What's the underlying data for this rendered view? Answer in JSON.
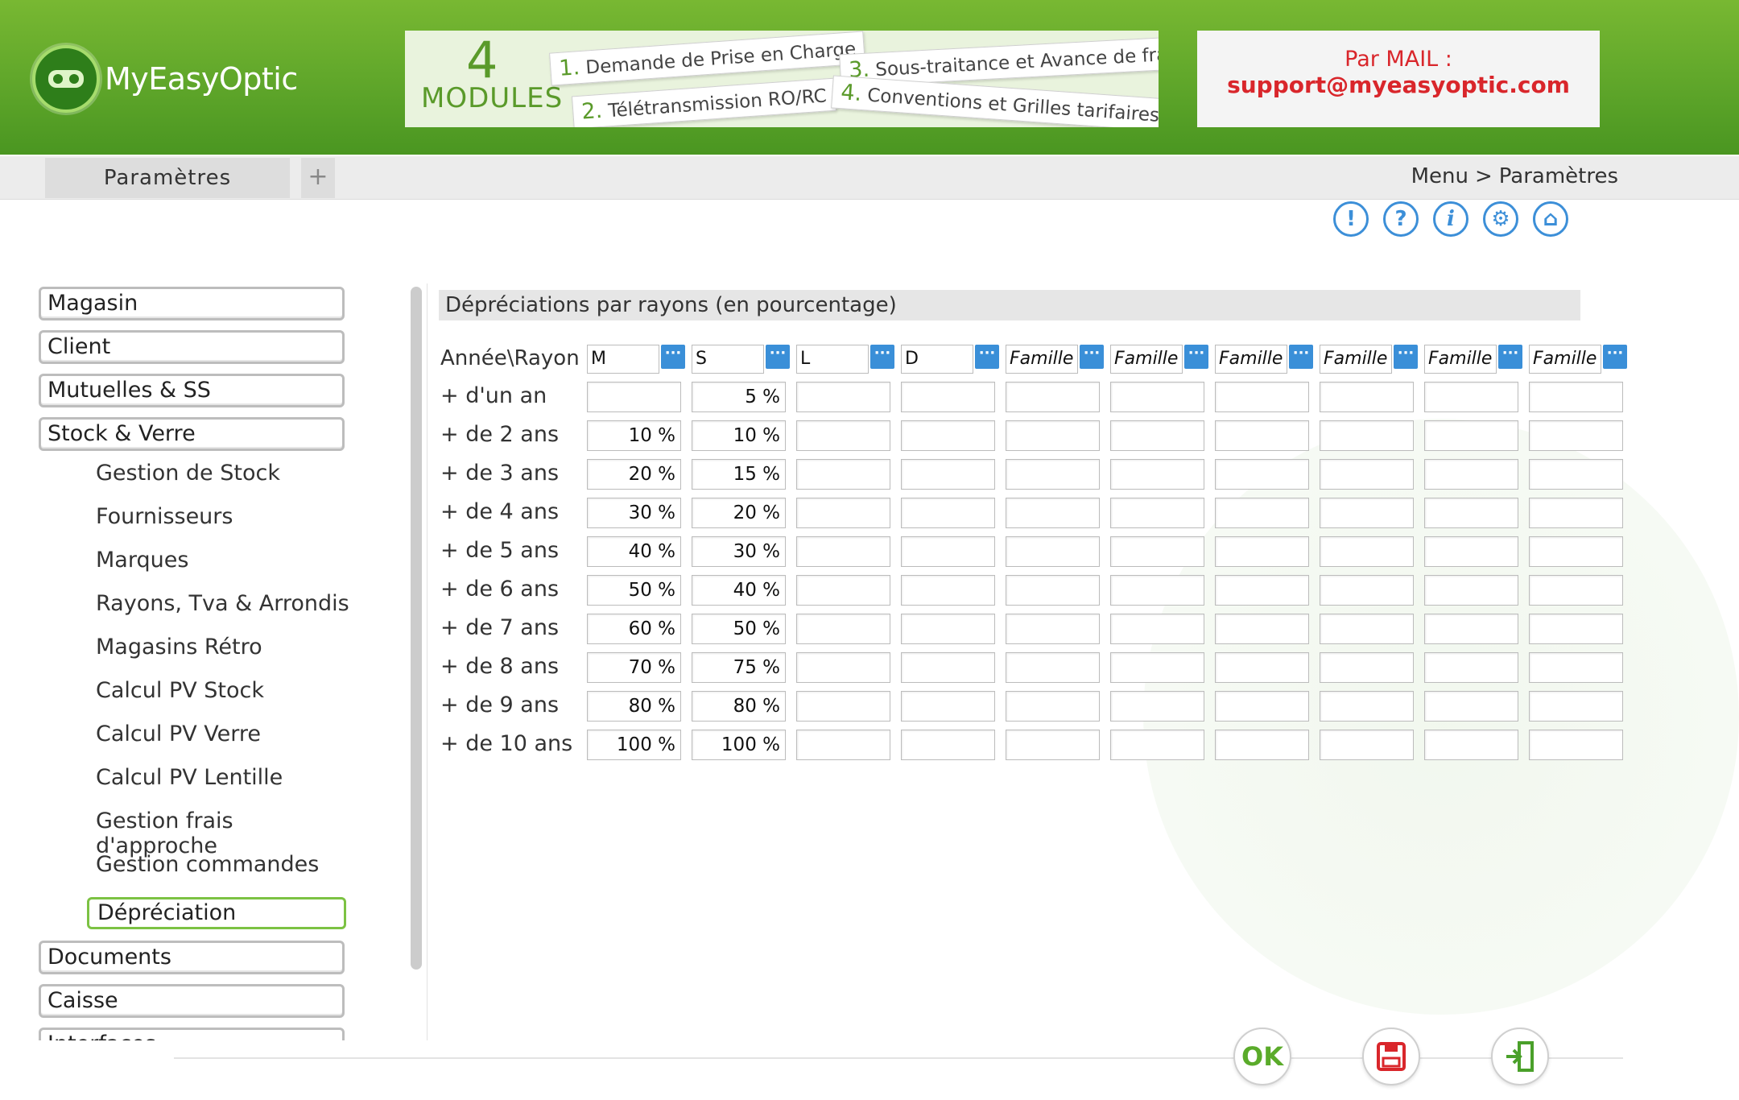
{
  "header": {
    "logo_text": "MyEasyOptic",
    "modules": {
      "number": "4",
      "word": "MODULES",
      "items": [
        {
          "n": "1.",
          "label": "Demande de Prise en Charge"
        },
        {
          "n": "2.",
          "label": "Télétransmission RO/RC"
        },
        {
          "n": "3.",
          "label": "Sous-traitance et Avance de frais"
        },
        {
          "n": "4.",
          "label": "Conventions et Grilles tarifaires"
        }
      ]
    },
    "mail": {
      "label": "Par MAIL :",
      "address": "support@myeasyoptic.com"
    }
  },
  "tabbar": {
    "tab_label": "Paramètres",
    "add_label": "+",
    "breadcrumb": {
      "root": "Menu",
      "sep": ">",
      "current": "Paramètres"
    }
  },
  "toolbar": {
    "icons": [
      {
        "name": "alert-icon",
        "glyph": "!"
      },
      {
        "name": "help-icon",
        "glyph": "?"
      },
      {
        "name": "info-icon",
        "glyph": "i"
      },
      {
        "name": "tools-icon",
        "glyph": "⚙"
      },
      {
        "name": "home-icon",
        "glyph": "⌂"
      }
    ]
  },
  "sidebar": {
    "magasin": "Magasin",
    "client": "Client",
    "mutuelles": "Mutuelles & SS",
    "stock": "Stock & Verre",
    "sub": [
      "Gestion de Stock",
      "Fournisseurs",
      "Marques",
      "Rayons, Tva & Arrondis",
      "Magasins Rétro",
      "Calcul PV Stock",
      "Calcul PV Verre",
      "Calcul PV Lentille",
      "Gestion frais d'approche",
      "Gestion commandes",
      "Dépréciation"
    ],
    "documents": "Documents",
    "caisse": "Caisse",
    "interfaces": "Interfaces"
  },
  "main": {
    "section_title": "Dépréciations par rayons (en pourcentage)",
    "corner_label": "Année\\Rayon",
    "more_glyph": "···",
    "columns": [
      "M",
      "S",
      "L",
      "D",
      "Famille",
      "Famille",
      "Famille",
      "Famille",
      "Famille",
      "Famille"
    ],
    "rows": [
      {
        "label": "+ d'un an",
        "values": [
          "",
          "5 %",
          "",
          "",
          "",
          "",
          "",
          "",
          "",
          ""
        ]
      },
      {
        "label": "+ de 2 ans",
        "values": [
          "10 %",
          "10 %",
          "",
          "",
          "",
          "",
          "",
          "",
          "",
          ""
        ]
      },
      {
        "label": "+ de 3 ans",
        "values": [
          "20 %",
          "15 %",
          "",
          "",
          "",
          "",
          "",
          "",
          "",
          ""
        ]
      },
      {
        "label": "+ de 4 ans",
        "values": [
          "30 %",
          "20 %",
          "",
          "",
          "",
          "",
          "",
          "",
          "",
          ""
        ]
      },
      {
        "label": "+ de 5 ans",
        "values": [
          "40 %",
          "30 %",
          "",
          "",
          "",
          "",
          "",
          "",
          "",
          ""
        ]
      },
      {
        "label": "+ de 6 ans",
        "values": [
          "50 %",
          "40 %",
          "",
          "",
          "",
          "",
          "",
          "",
          "",
          ""
        ]
      },
      {
        "label": "+ de 7 ans",
        "values": [
          "60 %",
          "50 %",
          "",
          "",
          "",
          "",
          "",
          "",
          "",
          ""
        ]
      },
      {
        "label": "+ de 8 ans",
        "values": [
          "70 %",
          "75 %",
          "",
          "",
          "",
          "",
          "",
          "",
          "",
          ""
        ]
      },
      {
        "label": "+ de 9 ans",
        "values": [
          "80 %",
          "80 %",
          "",
          "",
          "",
          "",
          "",
          "",
          "",
          ""
        ]
      },
      {
        "label": "+ de 10 ans",
        "values": [
          "100 %",
          "100 %",
          "",
          "",
          "",
          "",
          "",
          "",
          "",
          ""
        ]
      }
    ]
  },
  "footer": {
    "ok_label": "OK"
  },
  "colors": {
    "accent_green": "#5fa62a",
    "accent_blue": "#3a8fd8",
    "mail_red": "#d9262b"
  }
}
